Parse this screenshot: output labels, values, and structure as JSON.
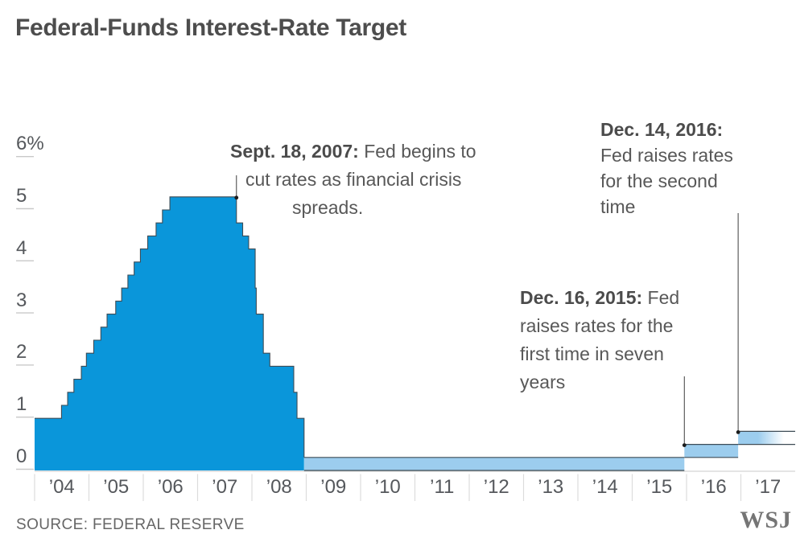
{
  "title": "Federal-Funds Interest-Rate Target",
  "footer": {
    "source": "SOURCE: FEDERAL RESERVE",
    "logo": "WSJ"
  },
  "colors": {
    "area": "#0a96da",
    "band": "#9ccdee",
    "edge": "#3e4c56",
    "annotation_line": "#4f4f4f",
    "dot": "#1c1c1c",
    "tick": "#c9c9c9",
    "separator": "#dcdcdc",
    "baseline": "#d4d4d4"
  },
  "chart_data": {
    "type": "area",
    "title": "Federal-Funds Interest-Rate Target",
    "ylabel": "%",
    "ylim": [
      0,
      6
    ],
    "grid": "off",
    "y_axis": [
      {
        "label": "6%",
        "value": 6
      },
      {
        "label": "5",
        "value": 5
      },
      {
        "label": "4",
        "value": 4
      },
      {
        "label": "3",
        "value": 3
      },
      {
        "label": "2",
        "value": 2
      },
      {
        "label": "1",
        "value": 1
      },
      {
        "label": "0",
        "value": 0
      }
    ],
    "x_axis": [
      "’04",
      "’05",
      "’06",
      "’07",
      "’08",
      "’09",
      "’10",
      "’11",
      "’12",
      "’13",
      "’14",
      "’15",
      "’16",
      "’17"
    ],
    "steps_note": "each entry = [decimal year of FOMC move, new target rate %]; series is step-after",
    "steps": [
      [
        2004.0,
        1.0
      ],
      [
        2004.495,
        1.25
      ],
      [
        2004.608,
        1.5
      ],
      [
        2004.723,
        1.75
      ],
      [
        2004.86,
        2.0
      ],
      [
        2004.953,
        2.25
      ],
      [
        2005.088,
        2.5
      ],
      [
        2005.219,
        2.75
      ],
      [
        2005.334,
        3.0
      ],
      [
        2005.493,
        3.25
      ],
      [
        2005.602,
        3.5
      ],
      [
        2005.717,
        3.75
      ],
      [
        2005.832,
        4.0
      ],
      [
        2005.947,
        4.25
      ],
      [
        2006.082,
        4.5
      ],
      [
        2006.236,
        4.75
      ],
      [
        2006.353,
        5.0
      ],
      [
        2006.49,
        5.25
      ],
      [
        2007.715,
        4.75
      ],
      [
        2007.83,
        4.5
      ],
      [
        2007.94,
        4.25
      ],
      [
        2008.06,
        3.5
      ],
      [
        2008.08,
        3.0
      ],
      [
        2008.21,
        2.25
      ],
      [
        2008.33,
        2.0
      ],
      [
        2008.77,
        1.5
      ],
      [
        2008.83,
        1.0
      ],
      [
        2008.96,
        0.0
      ]
    ],
    "bands_note": "target became a range after Dec 16 2008; drawn as floating bands [low%, high%]",
    "bands": [
      {
        "start": 2008.96,
        "end": 2015.96,
        "low": 0.0,
        "high": 0.25,
        "fade_out": false
      },
      {
        "start": 2015.96,
        "end": 2016.95,
        "low": 0.25,
        "high": 0.5,
        "fade_out": false
      },
      {
        "start": 2016.95,
        "end": 2017.99,
        "low": 0.5,
        "high": 0.75,
        "fade_out": true
      }
    ],
    "annotations": [
      {
        "id": "sept-2007",
        "bold": "Sept. 18, 2007:",
        "rest": " Fed begins to",
        "lines": [
          "cut rates as financial crisis",
          "spreads."
        ],
        "x": 2007.715,
        "marker_y": 5.25
      },
      {
        "id": "dec-2015",
        "bold": "Dec. 16, 2015:",
        "rest": " Fed",
        "lines": [
          "raises rates for the",
          "first time in seven",
          "years"
        ],
        "x": 2015.96,
        "marker_y": 0.5
      },
      {
        "id": "dec-2016",
        "bold": "Dec. 14, 2016:",
        "rest": "",
        "lines": [
          "Fed raises rates",
          "for the second",
          "time"
        ],
        "x": 2016.95,
        "marker_y": 0.75
      }
    ]
  }
}
